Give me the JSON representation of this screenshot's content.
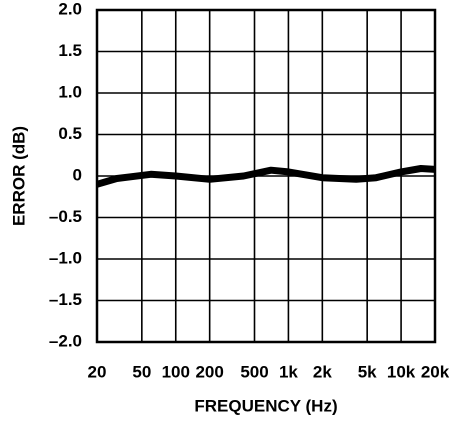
{
  "chart_data": {
    "type": "line",
    "xlabel": "FREQUENCY (Hz)",
    "ylabel": "ERROR (dB)",
    "xscale": "log",
    "grid": true,
    "color": "#000000",
    "x": [
      20,
      30,
      60,
      100,
      200,
      400,
      700,
      1000,
      2000,
      4000,
      6000,
      10000,
      15000,
      20000
    ],
    "values": [
      -0.1,
      -0.03,
      0.02,
      0,
      -0.04,
      0,
      0.07,
      0.05,
      -0.02,
      -0.04,
      -0.02,
      0.05,
      0.09,
      0.08
    ],
    "xlim": [
      20,
      20000
    ],
    "xticks": [
      20,
      50,
      100,
      200,
      500,
      {
        "value": 1000,
        "label": "1k"
      },
      {
        "value": 2000,
        "label": "2k"
      },
      {
        "value": 5000,
        "label": "5k"
      },
      {
        "value": 10000,
        "label": "10k"
      },
      {
        "value": 20000,
        "label": "20k"
      }
    ],
    "ylim": [
      -2,
      2
    ],
    "yticks": [
      {
        "value": 2,
        "label": "2.0"
      },
      {
        "value": 1.5,
        "label": "1.5"
      },
      {
        "value": 1,
        "label": "1.0"
      },
      {
        "value": 0.5,
        "label": "0.5"
      },
      0,
      {
        "value": -0.5,
        "label": "–0.5"
      },
      {
        "value": -1,
        "label": "–1.0"
      },
      {
        "value": -1.5,
        "label": "–1.5"
      },
      {
        "value": -2,
        "label": "–2.0"
      }
    ]
  }
}
